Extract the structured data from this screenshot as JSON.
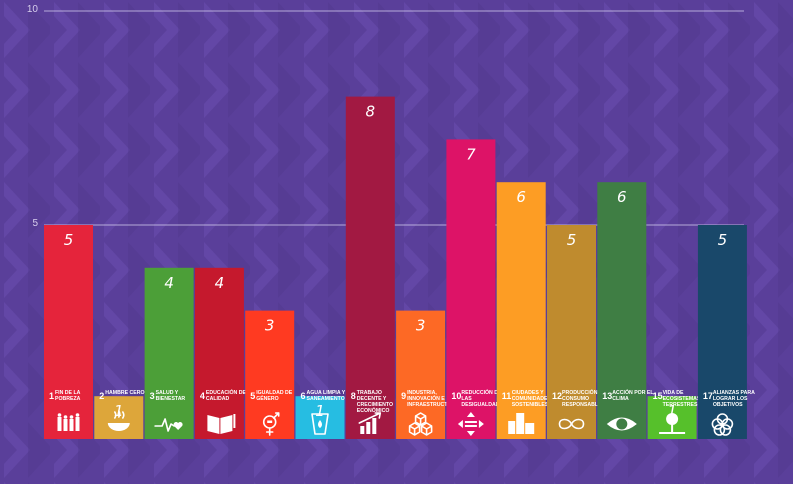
{
  "chart_data": {
    "type": "bar",
    "ylim": [
      0,
      10
    ],
    "yticks": [
      5,
      10
    ],
    "grid": true,
    "categories": [
      {
        "num": "1",
        "label": "FIN DE LA POBREZA",
        "color": "#e5243b",
        "icon": "family-icon"
      },
      {
        "num": "2",
        "label": "HAMBRE CERO",
        "color": "#dda63a",
        "icon": "bowl-icon"
      },
      {
        "num": "3",
        "label": "SALUD Y BIENESTAR",
        "color": "#4c9f38",
        "icon": "heartbeat-icon"
      },
      {
        "num": "4",
        "label": "EDUCACIÓN DE CALIDAD",
        "color": "#c5192d",
        "icon": "book-icon"
      },
      {
        "num": "5",
        "label": "IGUALDAD DE GÉNERO",
        "color": "#ff3a21",
        "icon": "gender-icon"
      },
      {
        "num": "6",
        "label": "AGUA LIMPIA Y SANEAMIENTO",
        "color": "#26bde2",
        "icon": "water-glass-icon"
      },
      {
        "num": "8",
        "label": "TRABAJO DECENTE Y CRECIMIENTO ECONÓMICO",
        "color": "#a21942",
        "icon": "growth-chart-icon"
      },
      {
        "num": "9",
        "label": "INDUSTRIA, INNOVACIÓN E INFRAESTRUCTURA",
        "color": "#fd6925",
        "icon": "cubes-icon"
      },
      {
        "num": "10",
        "label": "REDUCCIÓN DE LAS DESIGUALDADES",
        "color": "#dd1367",
        "icon": "equality-icon"
      },
      {
        "num": "11",
        "label": "CIUDADES Y COMUNIDADES SOSTENIBLES",
        "color": "#fd9d24",
        "icon": "buildings-icon"
      },
      {
        "num": "12",
        "label": "PRODUCCIÓN Y CONSUMO RESPONSABLES",
        "color": "#bf8b2e",
        "icon": "infinity-icon"
      },
      {
        "num": "13",
        "label": "ACCIÓN POR EL CLIMA",
        "color": "#3f7e44",
        "icon": "eye-globe-icon"
      },
      {
        "num": "15",
        "label": "VIDA DE ECOSISTEMAS TERRESTRES",
        "color": "#56c02b",
        "icon": "tree-icon"
      },
      {
        "num": "17",
        "label": "ALIANZAS PARA LOGRAR LOS OBJETIVOS",
        "color": "#19486a",
        "icon": "rings-icon"
      }
    ],
    "values": [
      5,
      1,
      4,
      4,
      3,
      1,
      8,
      3,
      7,
      6,
      5,
      6,
      1,
      5
    ]
  }
}
